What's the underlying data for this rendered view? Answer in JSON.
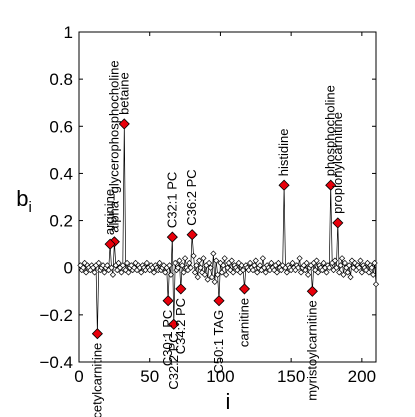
{
  "chart_data": {
    "type": "scatter",
    "xlabel": "i",
    "ylabel": "b",
    "ylabel_subscript": "i",
    "xlim": [
      0,
      210
    ],
    "ylim": [
      -0.4,
      1.0
    ],
    "xticks": [
      0,
      50,
      100,
      150,
      200
    ],
    "yticks": [
      -0.4,
      -0.2,
      0,
      0.2,
      0.4,
      0.6,
      0.8,
      1.0
    ],
    "xtick_labels": [
      "0",
      "50",
      "100",
      "150",
      "200"
    ],
    "ytick_labels": [
      "−0.4",
      "−0.2",
      "0",
      "0.2",
      "0.4",
      "0.6",
      "0.8",
      "1"
    ],
    "grid": false,
    "highlighted": [
      {
        "x": 13,
        "y": -0.28,
        "label": "acetylcarnitine"
      },
      {
        "x": 25,
        "y": 0.11,
        "label": "alpha−glycerophosphocholine"
      },
      {
        "x": 22,
        "y": 0.1,
        "label": "arginine"
      },
      {
        "x": 32,
        "y": 0.61,
        "label": "betaine"
      },
      {
        "x": 63,
        "y": -0.14,
        "label": "C30:1 PC"
      },
      {
        "x": 67,
        "y": -0.24,
        "label": "C32:2 PC"
      },
      {
        "x": 72,
        "y": -0.09,
        "label": "C34:2 PC"
      },
      {
        "x": 66,
        "y": 0.13,
        "label": "C32:1 PC"
      },
      {
        "x": 80,
        "y": 0.14,
        "label": "C36:2 PC"
      },
      {
        "x": 99,
        "y": -0.14,
        "label": "C50:1 TAG"
      },
      {
        "x": 117,
        "y": -0.09,
        "label": "carnitine"
      },
      {
        "x": 145,
        "y": 0.35,
        "label": "histidine"
      },
      {
        "x": 165,
        "y": -0.1,
        "label": "myristoylcarnitine"
      },
      {
        "x": 178,
        "y": 0.35,
        "label": "phosphocholine"
      },
      {
        "x": 183,
        "y": 0.19,
        "label": "propionylcarnitine"
      }
    ],
    "values": [
      0.01,
      -0.01,
      0.0,
      0.02,
      -0.02,
      0.01,
      0.0,
      -0.01,
      0.01,
      0.0,
      -0.02,
      0.01,
      -0.28,
      0.02,
      -0.01,
      0.0,
      0.01,
      -0.02,
      0.0,
      0.01,
      -0.01,
      0.1,
      0.0,
      -0.03,
      0.11,
      0.01,
      -0.01,
      0.02,
      0.0,
      -0.02,
      0.01,
      0.61,
      -0.01,
      0.02,
      -0.02,
      0.0,
      0.01,
      -0.01,
      0.0,
      0.02,
      -0.01,
      0.01,
      0.0,
      -0.02,
      0.01,
      0.0,
      -0.01,
      0.02,
      0.0,
      -0.01,
      0.01,
      0.0,
      -0.02,
      0.01,
      0.0,
      -0.01,
      0.02,
      -0.01,
      0.0,
      0.01,
      -0.02,
      0.0,
      -0.14,
      0.01,
      -0.03,
      0.13,
      -0.24,
      0.02,
      -0.01,
      0.0,
      0.03,
      -0.09,
      0.01,
      -0.02,
      0.04,
      0.0,
      -0.01,
      0.02,
      0.0,
      0.14,
      0.05,
      -0.02,
      0.01,
      -0.04,
      0.03,
      0.0,
      -0.02,
      0.04,
      -0.03,
      0.01,
      -0.05,
      0.02,
      0.0,
      -0.04,
      0.06,
      -0.06,
      0.03,
      -0.03,
      -0.14,
      0.02,
      -0.02,
      0.01,
      0.04,
      -0.03,
      0.0,
      0.02,
      -0.01,
      0.03,
      -0.02,
      0.01,
      0.0,
      -0.01,
      0.02,
      -0.02,
      0.01,
      -0.01,
      -0.09,
      0.01,
      0.0,
      -0.01,
      0.02,
      0.0,
      -0.01,
      0.01,
      0.03,
      -0.02,
      0.0,
      0.01,
      -0.01,
      0.04,
      0.0,
      -0.02,
      0.01,
      0.0,
      -0.01,
      0.02,
      0.0,
      -0.01,
      0.01,
      -0.02,
      0.02,
      0.0,
      -0.01,
      0.01,
      0.35,
      0.0,
      -0.02,
      0.01,
      0.0,
      -0.01,
      0.02,
      0.0,
      -0.01,
      0.01,
      0.0,
      0.04,
      -0.02,
      0.0,
      0.01,
      -0.01,
      0.02,
      -0.03,
      0.0,
      0.01,
      -0.1,
      0.02,
      -0.01,
      0.03,
      -0.02,
      0.01,
      0.0,
      -0.01,
      0.02,
      0.0,
      -0.02,
      0.01,
      0.0,
      0.35,
      0.02,
      -0.01,
      0.03,
      0.0,
      0.19,
      -0.02,
      0.01,
      0.04,
      -0.03,
      0.02,
      0.0,
      -0.02,
      0.01,
      -0.04,
      0.03,
      0.0,
      0.02,
      -0.01,
      0.01,
      0.0,
      0.03,
      -0.02,
      0.01,
      0.0,
      -0.01,
      0.02,
      -0.02,
      0.01,
      0.0,
      -0.03,
      0.02,
      -0.07
    ]
  }
}
